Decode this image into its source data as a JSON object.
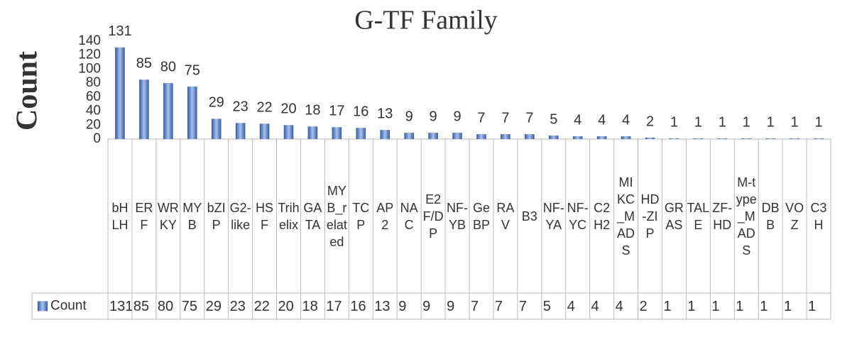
{
  "chart_data": {
    "type": "bar",
    "title": "G-TF Family",
    "y_label": "Count",
    "categories": [
      "bHLH",
      "ERF",
      "WRKY",
      "MYB",
      "bZIP",
      "G2-like",
      "HSF",
      "Trihelix",
      "GATA",
      "MYB_related",
      "TCP",
      "AP2",
      "NAC",
      "E2F/DP",
      "NF-YB",
      "GeBP",
      "RAV",
      "B3",
      "NF-YA",
      "NF-YC",
      "C2H2",
      "MIKC_MADS",
      "HD-ZIP",
      "GRAS",
      "TALE",
      "ZF-HD",
      "M-type_MADS",
      "DBB",
      "VOZ",
      "C3H"
    ],
    "series": [
      {
        "name": "Count",
        "color": "#4472c4",
        "values": [
          131,
          85,
          80,
          75,
          29,
          23,
          22,
          20,
          18,
          17,
          16,
          13,
          9,
          9,
          9,
          7,
          7,
          7,
          5,
          4,
          4,
          4,
          2,
          1,
          1,
          1,
          1,
          1,
          1,
          1
        ]
      }
    ],
    "ylim": [
      0,
      140
    ],
    "yticks": [
      0,
      20,
      40,
      60,
      80,
      100,
      120,
      140
    ],
    "grid": false,
    "data_table": true
  }
}
